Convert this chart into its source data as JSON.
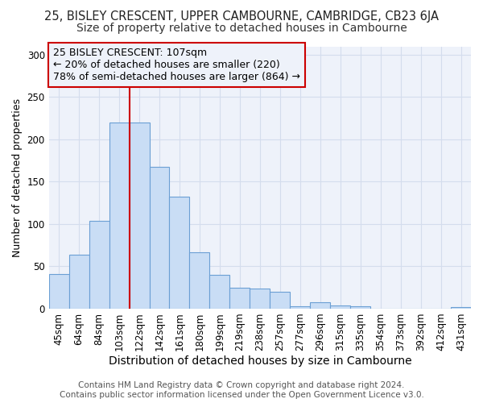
{
  "title1": "25, BISLEY CRESCENT, UPPER CAMBOURNE, CAMBRIDGE, CB23 6JA",
  "title2": "Size of property relative to detached houses in Cambourne",
  "xlabel": "Distribution of detached houses by size in Cambourne",
  "ylabel": "Number of detached properties",
  "categories": [
    "45sqm",
    "64sqm",
    "84sqm",
    "103sqm",
    "122sqm",
    "142sqm",
    "161sqm",
    "180sqm",
    "199sqm",
    "219sqm",
    "238sqm",
    "257sqm",
    "277sqm",
    "296sqm",
    "315sqm",
    "335sqm",
    "354sqm",
    "373sqm",
    "392sqm",
    "412sqm",
    "431sqm"
  ],
  "values": [
    41,
    64,
    104,
    220,
    220,
    168,
    132,
    67,
    40,
    25,
    24,
    20,
    3,
    8,
    4,
    3,
    0,
    0,
    0,
    0,
    2
  ],
  "bar_color": "#c9ddf5",
  "bar_edge_color": "#6b9fd4",
  "annotation_title": "25 BISLEY CRESCENT: 107sqm",
  "annotation_line1": "← 20% of detached houses are smaller (220)",
  "annotation_line2": "78% of semi-detached houses are larger (864) →",
  "vline_color": "#cc0000",
  "box_edge_color": "#cc0000",
  "footer1": "Contains HM Land Registry data © Crown copyright and database right 2024.",
  "footer2": "Contains public sector information licensed under the Open Government Licence v3.0.",
  "ylim": [
    0,
    310
  ],
  "yticks": [
    0,
    50,
    100,
    150,
    200,
    250,
    300
  ],
  "title1_fontsize": 10.5,
  "title2_fontsize": 10,
  "xlabel_fontsize": 10,
  "ylabel_fontsize": 9,
  "tick_fontsize": 8.5,
  "annotation_fontsize": 9,
  "footer_fontsize": 7.5,
  "grid_color": "#d4dded",
  "bg_color": "#ffffff",
  "plot_bg_color": "#eef2fa"
}
